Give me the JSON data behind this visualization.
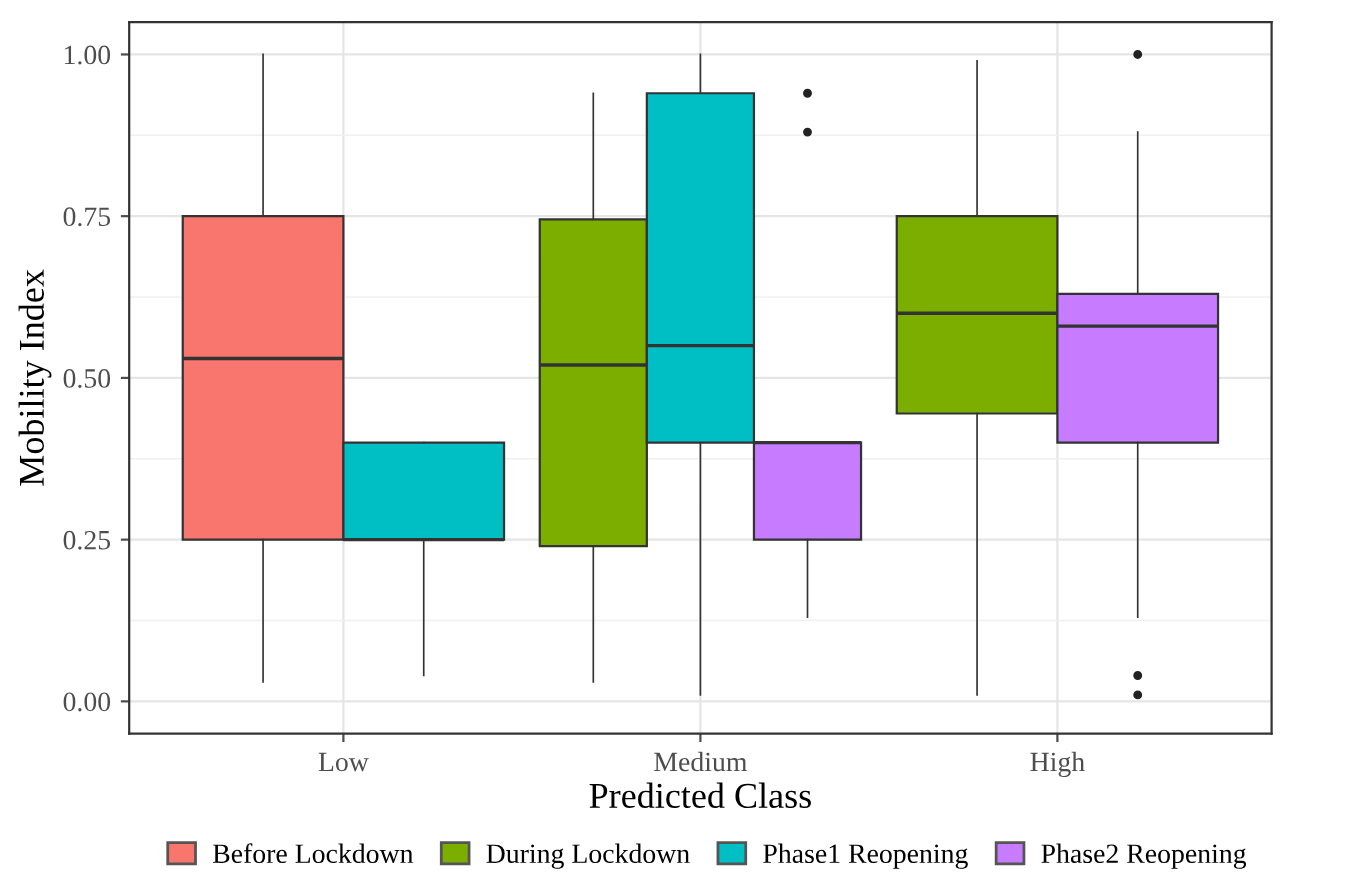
{
  "chart_data": {
    "type": "box",
    "xlabel": "Predicted Class",
    "ylabel": "Mobility Index",
    "categories": [
      "Low",
      "Medium",
      "High"
    ],
    "ylim": [
      -0.05,
      1.05
    ],
    "yticks": [
      {
        "value": 0,
        "label": "0.00"
      },
      {
        "value": 0.25,
        "label": "0.25"
      },
      {
        "value": 0.5,
        "label": "0.50"
      },
      {
        "value": 0.75,
        "label": "0.75"
      },
      {
        "value": 1,
        "label": "1.00"
      }
    ],
    "grid": true,
    "legend": "bottom",
    "series": [
      {
        "name": "Before Lockdown",
        "color": "#f8766d",
        "boxes": [
          {
            "low": 0.03,
            "q1": 0.25,
            "median": 0.53,
            "q3": 0.75,
            "high": 1.0
          },
          null,
          null
        ]
      },
      {
        "name": "During Lockdown",
        "color": "#7cae00",
        "boxes": [
          null,
          {
            "low": 0.03,
            "q1": 0.24,
            "median": 0.52,
            "q3": 0.745,
            "high": 0.94
          },
          {
            "low": 0.01,
            "q1": 0.445,
            "median": 0.6,
            "q3": 0.75,
            "high": 0.99
          }
        ]
      },
      {
        "name": "Phase1 Reopening",
        "color": "#00bfc4",
        "boxes": [
          {
            "low": 0.04,
            "q1": 0.25,
            "median": 0.25,
            "q3": 0.4,
            "high": 0.4
          },
          {
            "low": 0.01,
            "q1": 0.4,
            "median": 0.55,
            "q3": 0.94,
            "high": 1.0
          },
          null
        ]
      },
      {
        "name": "Phase2 Reopening",
        "color": "#c77cff",
        "boxes": [
          null,
          {
            "low": 0.13,
            "q1": 0.25,
            "median": 0.4,
            "q3": 0.4,
            "high": 0.4,
            "outliers": [
              0.94,
              0.88
            ]
          },
          {
            "low": 0.13,
            "q1": 0.4,
            "median": 0.58,
            "q3": 0.63,
            "high": 0.88,
            "outliers": [
              1.0,
              0.04,
              0.01
            ]
          }
        ]
      }
    ]
  }
}
